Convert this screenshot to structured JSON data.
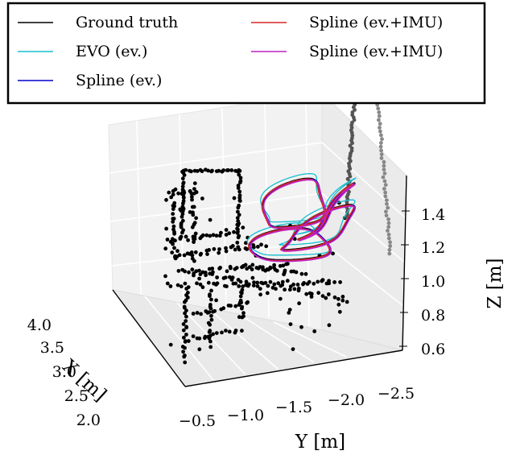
{
  "chart_data": {
    "type": "scatter",
    "projection": "3d",
    "xlabel": "X [m]",
    "ylabel": "Y [m]",
    "zlabel": "Z [m]",
    "x_ticks": [
      "2.0",
      "2.5",
      "3.0",
      "3.5",
      "4.0"
    ],
    "y_ticks": [
      "−0.5",
      "−1.0",
      "−1.5",
      "−2.0",
      "−2.5"
    ],
    "z_ticks": [
      "0.6",
      "0.8",
      "1.0",
      "1.2",
      "1.4"
    ],
    "xlim": [
      2.0,
      4.0
    ],
    "ylim": [
      -0.5,
      -2.5
    ],
    "zlim": [
      0.6,
      1.5
    ],
    "grid": true,
    "legend_position": "top",
    "legend_columns": 2,
    "series": [
      {
        "name": "Ground truth",
        "color": "#000000",
        "kind": "line"
      },
      {
        "name": "EVO (ev.)",
        "color": "#17becf",
        "kind": "line"
      },
      {
        "name": "Spline (ev.)",
        "color": "#0000cc",
        "kind": "line"
      },
      {
        "name": "Spline (ev.+IMU)",
        "color": "#d62728",
        "kind": "line"
      },
      {
        "name": "Spline (ev.+IMU)",
        "color": "#c020c0",
        "kind": "line"
      }
    ],
    "point_cloud_color": "#000000"
  }
}
